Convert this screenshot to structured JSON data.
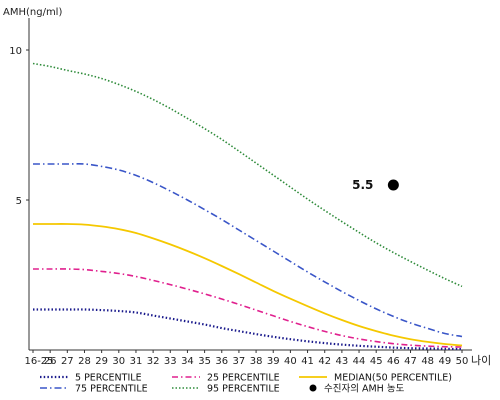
{
  "chart_data": {
    "type": "line",
    "ylabel": "AMH(ng/ml)",
    "xlabel": "나이",
    "ylim": [
      0,
      11
    ],
    "yticks": [
      5,
      10
    ],
    "categories": [
      "16-25",
      "26",
      "27",
      "28",
      "29",
      "30",
      "31",
      "32",
      "33",
      "34",
      "35",
      "36",
      "37",
      "38",
      "39",
      "40",
      "41",
      "42",
      "43",
      "44",
      "45",
      "46",
      "47",
      "48",
      "49",
      "50"
    ],
    "series": [
      {
        "name": "5 PERCENTILE",
        "color": "#1a1a8c",
        "dash": "1.5,2.2",
        "width": 2.2,
        "values": [
          1.35,
          1.35,
          1.35,
          1.35,
          1.33,
          1.3,
          1.25,
          1.15,
          1.05,
          0.95,
          0.85,
          0.73,
          0.63,
          0.53,
          0.44,
          0.36,
          0.29,
          0.23,
          0.18,
          0.14,
          0.11,
          0.08,
          0.06,
          0.05,
          0.04,
          0.03
        ]
      },
      {
        "name": "25 PERCENTILE",
        "color": "#e0208e",
        "dash": "6,3,1.5,3",
        "width": 1.6,
        "values": [
          2.7,
          2.7,
          2.7,
          2.68,
          2.62,
          2.55,
          2.45,
          2.32,
          2.18,
          2.03,
          1.87,
          1.7,
          1.52,
          1.33,
          1.14,
          0.95,
          0.78,
          0.62,
          0.48,
          0.37,
          0.28,
          0.21,
          0.16,
          0.13,
          0.11,
          0.1
        ]
      },
      {
        "name": "MEDIAN(50 PERCENTILE)",
        "color": "#f5c800",
        "dash": "",
        "width": 1.8,
        "values": [
          4.2,
          4.2,
          4.2,
          4.18,
          4.12,
          4.03,
          3.9,
          3.72,
          3.52,
          3.3,
          3.06,
          2.8,
          2.53,
          2.25,
          1.97,
          1.71,
          1.46,
          1.22,
          1.0,
          0.8,
          0.63,
          0.48,
          0.36,
          0.27,
          0.2,
          0.15
        ]
      },
      {
        "name": "75 PERCENTILE",
        "color": "#3a56c8",
        "dash": "7,3,1.5,3",
        "width": 1.6,
        "values": [
          6.2,
          6.2,
          6.2,
          6.2,
          6.12,
          6.0,
          5.82,
          5.58,
          5.3,
          5.0,
          4.68,
          4.35,
          4.0,
          3.65,
          3.3,
          2.95,
          2.6,
          2.27,
          1.95,
          1.65,
          1.37,
          1.12,
          0.9,
          0.72,
          0.55,
          0.45
        ]
      },
      {
        "name": "95 PERCENTILE",
        "color": "#2e8b3a",
        "dash": "1.5,2",
        "width": 1.6,
        "values": [
          9.55,
          9.45,
          9.32,
          9.2,
          9.05,
          8.85,
          8.62,
          8.35,
          8.05,
          7.72,
          7.38,
          7.02,
          6.63,
          6.23,
          5.83,
          5.43,
          5.03,
          4.65,
          4.28,
          3.92,
          3.57,
          3.25,
          2.95,
          2.66,
          2.38,
          2.12
        ]
      }
    ],
    "markers": [
      {
        "name": "수진자의 AMH 농도",
        "x": "46",
        "y": 5.5,
        "label": "5.5",
        "color": "#000000"
      }
    ],
    "legend_position": "bottom"
  }
}
